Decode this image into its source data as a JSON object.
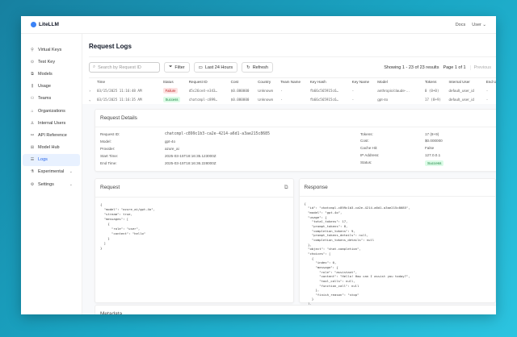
{
  "app": {
    "title": "LiteLLM",
    "docs": "Docs",
    "user": "User"
  },
  "sidebar": {
    "items": [
      {
        "label": "Virtual Keys",
        "icon": "key-icon"
      },
      {
        "label": "Test Key",
        "icon": "play-icon"
      },
      {
        "label": "Models",
        "icon": "cube-icon"
      },
      {
        "label": "Usage",
        "icon": "chart-icon"
      },
      {
        "label": "Teams",
        "icon": "team-icon"
      },
      {
        "label": "Organizations",
        "icon": "bank-icon"
      },
      {
        "label": "Internal Users",
        "icon": "user-icon"
      },
      {
        "label": "API Reference",
        "icon": "api-icon"
      },
      {
        "label": "Model Hub",
        "icon": "grid-icon"
      },
      {
        "label": "Logs",
        "icon": "logs-icon",
        "active": true
      },
      {
        "label": "Experimental",
        "icon": "flask-icon"
      },
      {
        "label": "Settings",
        "icon": "gear-icon"
      }
    ]
  },
  "page": {
    "title": "Request Logs",
    "search_placeholder": "Search by Request ID",
    "filter": "Filter",
    "range": "Last 24 Hours",
    "refresh": "Refresh",
    "showing": "Showing 1 - 23 of 23 results",
    "page": "Page 1 of 1",
    "previous": "Previous"
  },
  "table": {
    "headers": [
      "Time",
      "Status",
      "Request ID",
      "Cost",
      "Country",
      "Team Name",
      "Key Hash",
      "Key Name",
      "Model",
      "Tokens",
      "Internal User",
      "End User"
    ],
    "rows": [
      [
        "03/15/2025 11:16:48 AM",
        "Failure",
        "d5c26ce4-e343…",
        "$0.000000",
        "Unknown",
        "-",
        "fb66c565915c6…",
        "-",
        "anthropic/claude-…",
        "0 (0+0)",
        "default_user_id",
        "-"
      ],
      [
        "03/15/2025 11:16:35 AM",
        "Success",
        "chatcmpl-c899…",
        "$0.000000",
        "Unknown",
        "-",
        "fb66c565915c6…",
        "-",
        "gpt-4o",
        "17 (8+9)",
        "default_user_id",
        "-"
      ]
    ]
  },
  "details": {
    "title": "Request Details",
    "left": [
      [
        "Request ID:",
        "chatcmpl-c899c1b3-ca2e-4214-a6d1-a3ae215c8685"
      ],
      [
        "Model:",
        "gpt-4o"
      ],
      [
        "Provider:",
        "azure_ai"
      ],
      [
        "Start Time:",
        "2025-03-15T18:16:35.123000Z"
      ],
      [
        "End Time:",
        "2025-03-15T18:16:36.228000Z"
      ]
    ],
    "right": [
      [
        "Tokens:",
        "17 (8+9)"
      ],
      [
        "Cost:",
        "$0.000000"
      ],
      [
        "Cache Hit:",
        "False"
      ],
      [
        "IP Address:",
        "127.0.0.1"
      ],
      [
        "Status:",
        "Success"
      ]
    ]
  },
  "request": {
    "title": "Request",
    "body": "{\n  \"model\": \"azure_ai/gpt-4o\",\n  \"stream\": true,\n  \"messages\": [\n    {\n      \"role\": \"user\",\n      \"content\": \"hello\"\n    }\n  ]\n}"
  },
  "response": {
    "title": "Response",
    "body": "{\n  \"id\": \"chatcmpl-c899c1b3-ca2e-4214-a6d1-a3ae215c8685\",\n  \"model\": \"gpt-4o\",\n  \"usage\": {\n    \"total_tokens\": 17,\n    \"prompt_tokens\": 8,\n    \"completion_tokens\": 9,\n    \"prompt_tokens_details\": null,\n    \"completion_tokens_details\": null\n  },\n  \"object\": \"chat.completion\",\n  \"choices\": [\n    {\n      \"index\": 0,\n      \"message\": {\n        \"role\": \"assistant\",\n        \"content\": \"Hello! How can I assist you today?\",\n        \"tool_calls\": null,\n        \"function_call\": null\n      },\n      \"finish_reason\": \"stop\"\n    }\n  ],"
  },
  "metadata": {
    "title": "Metadata"
  }
}
